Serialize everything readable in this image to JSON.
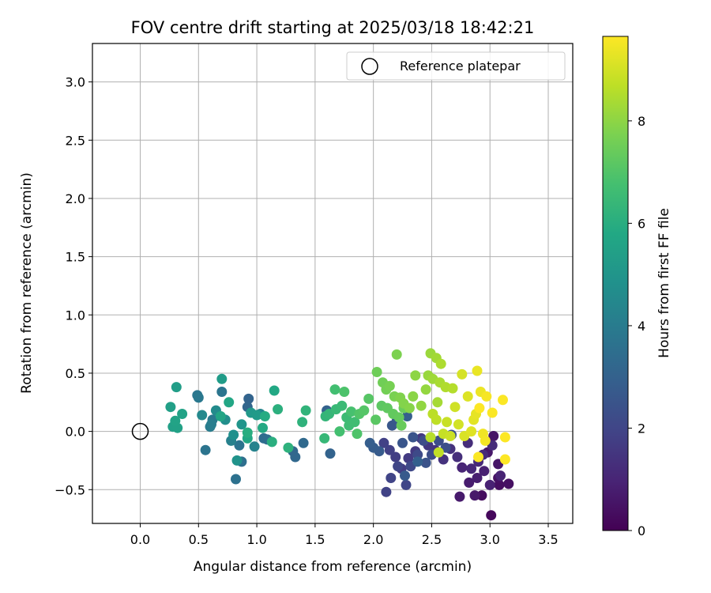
{
  "chart_data": {
    "type": "scatter",
    "title": "FOV centre drift starting at 2025/03/18 18:42:21",
    "xlabel": "Angular distance from reference (arcmin)",
    "ylabel": "Rotation from reference (arcmin)",
    "xlim": [
      -0.41,
      3.71
    ],
    "ylim": [
      -0.79,
      3.33
    ],
    "xticks": [
      "0.0",
      "0.5",
      "1.0",
      "1.5",
      "2.0",
      "2.5",
      "3.0",
      "3.5"
    ],
    "yticks": [
      "−0.5",
      "0.0",
      "0.5",
      "1.0",
      "1.5",
      "2.0",
      "2.5",
      "3.0"
    ],
    "grid": true,
    "legend": {
      "position": "top-right",
      "entries": [
        "Reference platepar"
      ]
    },
    "reference_point": {
      "name": "Reference platepar",
      "x": 0.0,
      "y": 0.0,
      "marker": "open-circle"
    },
    "colorbar": {
      "label": "Hours from first FF file",
      "min": 0,
      "max": 9.65,
      "ticks": [
        "0",
        "2",
        "4",
        "6",
        "8"
      ],
      "colormap": "viridis"
    },
    "point_fields": [
      "x",
      "y",
      "hours"
    ],
    "points": [
      [
        3.01,
        -0.72,
        0.2
      ],
      [
        2.93,
        -0.55,
        0.3
      ],
      [
        3.08,
        -0.46,
        0.35
      ],
      [
        3.16,
        -0.45,
        0.4
      ],
      [
        3.07,
        -0.4,
        0.45
      ],
      [
        3.03,
        -0.04,
        0.5
      ],
      [
        3.07,
        -0.28,
        0.55
      ],
      [
        2.98,
        -0.18,
        0.6
      ],
      [
        2.87,
        -0.55,
        0.65
      ],
      [
        2.74,
        -0.56,
        0.7
      ],
      [
        2.82,
        -0.44,
        0.75
      ],
      [
        2.89,
        -0.4,
        0.8
      ],
      [
        2.95,
        -0.34,
        0.85
      ],
      [
        3.0,
        -0.46,
        0.9
      ],
      [
        3.09,
        -0.38,
        0.95
      ],
      [
        2.76,
        -0.31,
        1.0
      ],
      [
        2.84,
        -0.32,
        1.05
      ],
      [
        2.9,
        -0.26,
        1.1
      ],
      [
        2.94,
        -0.2,
        1.15
      ],
      [
        3.02,
        -0.12,
        1.2
      ],
      [
        2.81,
        -0.1,
        1.25
      ],
      [
        2.72,
        -0.22,
        1.3
      ],
      [
        2.66,
        -0.15,
        1.35
      ],
      [
        2.6,
        -0.24,
        1.4
      ],
      [
        2.53,
        -0.16,
        1.45
      ],
      [
        2.47,
        -0.12,
        1.5
      ],
      [
        2.41,
        -0.06,
        1.55
      ],
      [
        2.36,
        -0.17,
        1.6
      ],
      [
        2.3,
        -0.23,
        1.65
      ],
      [
        2.24,
        -0.32,
        1.7
      ],
      [
        2.19,
        -0.22,
        1.75
      ],
      [
        2.14,
        -0.16,
        1.8
      ],
      [
        2.09,
        -0.1,
        1.85
      ],
      [
        2.11,
        -0.52,
        1.9
      ],
      [
        2.15,
        -0.4,
        1.95
      ],
      [
        2.21,
        -0.3,
        2.0
      ],
      [
        2.28,
        -0.46,
        2.05
      ],
      [
        2.32,
        -0.3,
        2.1
      ],
      [
        2.38,
        -0.2,
        2.15
      ],
      [
        2.43,
        -0.08,
        2.2
      ],
      [
        2.5,
        -0.2,
        2.25
      ],
      [
        2.56,
        -0.08,
        2.3
      ],
      [
        2.62,
        -0.14,
        2.35
      ],
      [
        2.67,
        -0.03,
        2.4
      ],
      [
        2.45,
        -0.27,
        2.45
      ],
      [
        2.34,
        -0.05,
        2.5
      ],
      [
        2.25,
        -0.1,
        2.55
      ],
      [
        2.16,
        0.05,
        2.6
      ],
      [
        2.2,
        0.09,
        2.65
      ],
      [
        2.27,
        -0.38,
        2.7
      ],
      [
        2.05,
        -0.17,
        2.75
      ],
      [
        2.0,
        -0.14,
        2.8
      ],
      [
        1.97,
        -0.1,
        2.85
      ],
      [
        2.29,
        0.13,
        2.9
      ],
      [
        2.38,
        -0.26,
        2.95
      ],
      [
        1.6,
        0.18,
        3.0
      ],
      [
        1.63,
        -0.19,
        3.05
      ],
      [
        0.93,
        0.28,
        3.1
      ],
      [
        0.92,
        0.21,
        3.15
      ],
      [
        1.31,
        -0.17,
        3.2
      ],
      [
        1.33,
        -0.22,
        3.25
      ],
      [
        1.4,
        -0.1,
        3.3
      ],
      [
        1.06,
        -0.06,
        3.4
      ],
      [
        1.09,
        -0.07,
        3.45
      ],
      [
        0.87,
        -0.26,
        3.5
      ],
      [
        0.82,
        -0.41,
        3.6
      ],
      [
        0.85,
        -0.12,
        3.65
      ],
      [
        0.56,
        -0.16,
        3.7
      ],
      [
        0.7,
        0.34,
        3.75
      ],
      [
        0.49,
        0.31,
        3.8
      ],
      [
        0.5,
        0.29,
        3.85
      ],
      [
        0.62,
        0.1,
        3.9
      ],
      [
        0.6,
        0.04,
        4.0
      ],
      [
        0.61,
        0.06,
        4.1
      ],
      [
        0.78,
        -0.08,
        4.2
      ],
      [
        0.98,
        -0.13,
        4.3
      ],
      [
        1.03,
        0.15,
        4.4
      ],
      [
        0.53,
        0.14,
        4.5
      ],
      [
        0.65,
        0.18,
        4.6
      ],
      [
        0.73,
        0.1,
        4.7
      ],
      [
        0.8,
        -0.03,
        4.8
      ],
      [
        0.83,
        -0.25,
        4.9
      ],
      [
        0.87,
        0.06,
        5.0
      ],
      [
        0.95,
        0.16,
        5.1
      ],
      [
        1.0,
        0.14,
        5.2
      ],
      [
        0.7,
        0.45,
        5.3
      ],
      [
        0.31,
        0.38,
        5.35
      ],
      [
        0.26,
        0.21,
        5.4
      ],
      [
        0.28,
        0.04,
        5.45
      ],
      [
        0.32,
        0.03,
        5.5
      ],
      [
        0.36,
        0.15,
        5.55
      ],
      [
        0.3,
        0.09,
        5.6
      ],
      [
        0.69,
        0.13,
        5.65
      ],
      [
        0.76,
        0.25,
        5.7
      ],
      [
        0.92,
        -0.06,
        5.75
      ],
      [
        1.15,
        0.35,
        5.8
      ],
      [
        1.05,
        0.03,
        5.85
      ],
      [
        1.07,
        0.13,
        5.9
      ],
      [
        0.92,
        -0.01,
        6.0
      ],
      [
        1.13,
        -0.09,
        6.05
      ],
      [
        1.18,
        0.19,
        6.1
      ],
      [
        1.27,
        -0.14,
        6.15
      ],
      [
        1.39,
        0.08,
        6.2
      ],
      [
        1.42,
        0.18,
        6.25
      ],
      [
        1.59,
        0.13,
        6.3
      ],
      [
        1.62,
        0.15,
        6.35
      ],
      [
        1.58,
        -0.06,
        6.4
      ],
      [
        1.68,
        0.19,
        6.45
      ],
      [
        1.73,
        0.22,
        6.5
      ],
      [
        1.77,
        0.12,
        6.55
      ],
      [
        1.79,
        0.05,
        6.6
      ],
      [
        1.84,
        0.08,
        6.65
      ],
      [
        1.67,
        0.36,
        6.7
      ],
      [
        1.71,
        0.0,
        6.75
      ],
      [
        1.81,
        0.17,
        6.8
      ],
      [
        1.75,
        0.34,
        6.9
      ],
      [
        1.86,
        -0.02,
        6.95
      ],
      [
        1.88,
        0.15,
        7.0
      ],
      [
        1.92,
        0.18,
        7.05
      ],
      [
        1.96,
        0.28,
        7.1
      ],
      [
        2.02,
        0.1,
        7.15
      ],
      [
        2.07,
        0.22,
        7.2
      ],
      [
        2.12,
        0.2,
        7.25
      ],
      [
        2.17,
        0.15,
        7.3
      ],
      [
        2.22,
        0.12,
        7.35
      ],
      [
        2.24,
        0.05,
        7.4
      ],
      [
        2.26,
        0.2,
        7.45
      ],
      [
        2.03,
        0.51,
        7.5
      ],
      [
        2.08,
        0.42,
        7.55
      ],
      [
        2.11,
        0.36,
        7.6
      ],
      [
        2.14,
        0.39,
        7.65
      ],
      [
        2.18,
        0.3,
        7.7
      ],
      [
        2.2,
        0.66,
        7.75
      ],
      [
        2.23,
        0.29,
        7.8
      ],
      [
        2.26,
        0.24,
        7.85
      ],
      [
        2.31,
        0.2,
        7.9
      ],
      [
        2.34,
        0.3,
        7.95
      ],
      [
        2.36,
        0.48,
        8.0
      ],
      [
        2.41,
        0.22,
        8.05
      ],
      [
        2.45,
        0.36,
        8.1
      ],
      [
        2.47,
        0.48,
        8.15
      ],
      [
        2.49,
        0.67,
        8.2
      ],
      [
        2.51,
        0.45,
        8.25
      ],
      [
        2.54,
        0.63,
        8.3
      ],
      [
        2.55,
        0.25,
        8.35
      ],
      [
        2.57,
        0.42,
        8.4
      ],
      [
        2.58,
        0.58,
        8.45
      ],
      [
        2.62,
        0.38,
        8.5
      ],
      [
        2.68,
        0.37,
        8.55
      ],
      [
        2.49,
        -0.05,
        8.6
      ],
      [
        2.51,
        0.15,
        8.65
      ],
      [
        2.54,
        0.1,
        8.7
      ],
      [
        2.56,
        -0.18,
        8.75
      ],
      [
        2.6,
        -0.02,
        8.8
      ],
      [
        2.63,
        0.08,
        8.85
      ],
      [
        2.66,
        -0.04,
        8.9
      ],
      [
        2.7,
        0.21,
        8.95
      ],
      [
        2.73,
        0.06,
        9.0
      ],
      [
        2.76,
        0.49,
        9.05
      ],
      [
        2.78,
        -0.04,
        9.1
      ],
      [
        2.81,
        0.3,
        9.15
      ],
      [
        2.84,
        0.0,
        9.2
      ],
      [
        2.86,
        0.1,
        9.25
      ],
      [
        2.88,
        0.15,
        9.3
      ],
      [
        2.89,
        0.52,
        9.35
      ],
      [
        2.92,
        0.34,
        9.4
      ],
      [
        2.94,
        -0.02,
        9.45
      ],
      [
        2.96,
        -0.08,
        9.5
      ],
      [
        2.97,
        0.3,
        9.55
      ],
      [
        3.02,
        0.16,
        9.6
      ],
      [
        3.11,
        0.27,
        9.62
      ],
      [
        3.13,
        -0.05,
        9.64
      ],
      [
        3.13,
        -0.24,
        9.65
      ],
      [
        2.91,
        0.2,
        9.63
      ],
      [
        2.9,
        -0.22,
        9.6
      ]
    ]
  }
}
